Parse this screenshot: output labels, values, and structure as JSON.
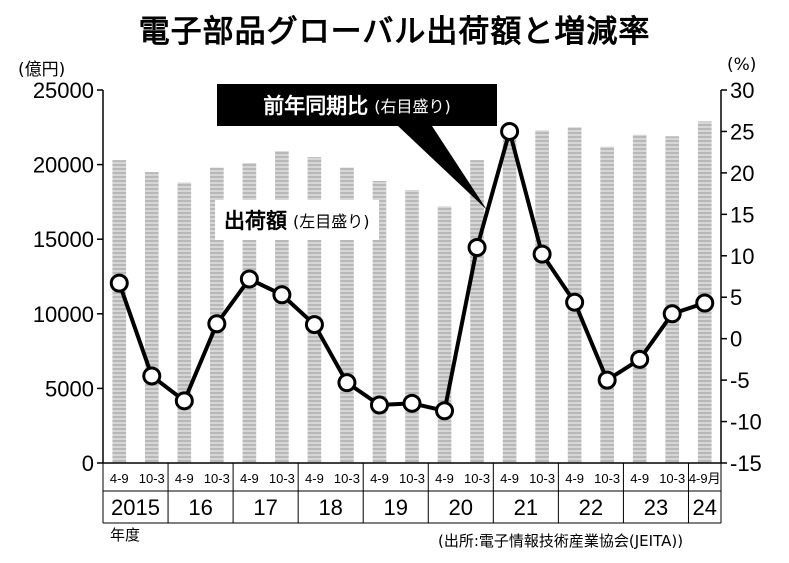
{
  "title": "電子部品グローバル出荷額と増減率",
  "left_unit": "(億円)",
  "right_unit": "(%)",
  "line_label": "前年同期比",
  "line_label_note": "(右目盛り)",
  "bar_label": "出荷額",
  "bar_label_note": "(左目盛り)",
  "fiscal_year_label": "年度",
  "source": "(出所:電子情報技術産業協会(JEITA))",
  "colors": {
    "bar": "#b8b8b8",
    "line": "#000000",
    "marker_fill": "#ffffff",
    "axis": "#000000"
  },
  "chart_data": {
    "type": "bar+line",
    "title": "電子部品グローバル出荷額と増減率",
    "y_left": {
      "label": "(億円)",
      "range": [
        0,
        25000
      ],
      "ticks": [
        0,
        5000,
        10000,
        15000,
        20000,
        25000
      ]
    },
    "y_right": {
      "label": "(%)",
      "range": [
        -15,
        30
      ],
      "ticks": [
        -15,
        -10,
        -5,
        0,
        5,
        10,
        15,
        20,
        25,
        30
      ]
    },
    "half_labels": [
      "4-9",
      "10-3",
      "4-9",
      "10-3",
      "4-9",
      "10-3",
      "4-9",
      "10-3",
      "4-9",
      "10-3",
      "4-9",
      "10-3",
      "4-9",
      "10-3",
      "4-9",
      "10-3",
      "4-9",
      "10-3",
      "4-9月"
    ],
    "year_labels": [
      "2015",
      "16",
      "17",
      "18",
      "19",
      "20",
      "21",
      "22",
      "23",
      "24"
    ],
    "series": [
      {
        "name": "出荷額",
        "axis": "left",
        "type": "bar",
        "values": [
          20300,
          19500,
          18800,
          19800,
          20100,
          20900,
          20500,
          19800,
          18900,
          18300,
          17200,
          20300,
          22700,
          22300,
          22500,
          21200,
          22000,
          21900,
          22900
        ]
      },
      {
        "name": "前年同期比",
        "axis": "right",
        "type": "line",
        "values": [
          6.7,
          -4.5,
          -7.5,
          1.8,
          7.2,
          5.3,
          1.7,
          -5.3,
          -8.0,
          -7.8,
          -8.7,
          11.0,
          25.0,
          10.2,
          4.4,
          -5.0,
          -2.5,
          3.0,
          4.3
        ]
      }
    ]
  }
}
